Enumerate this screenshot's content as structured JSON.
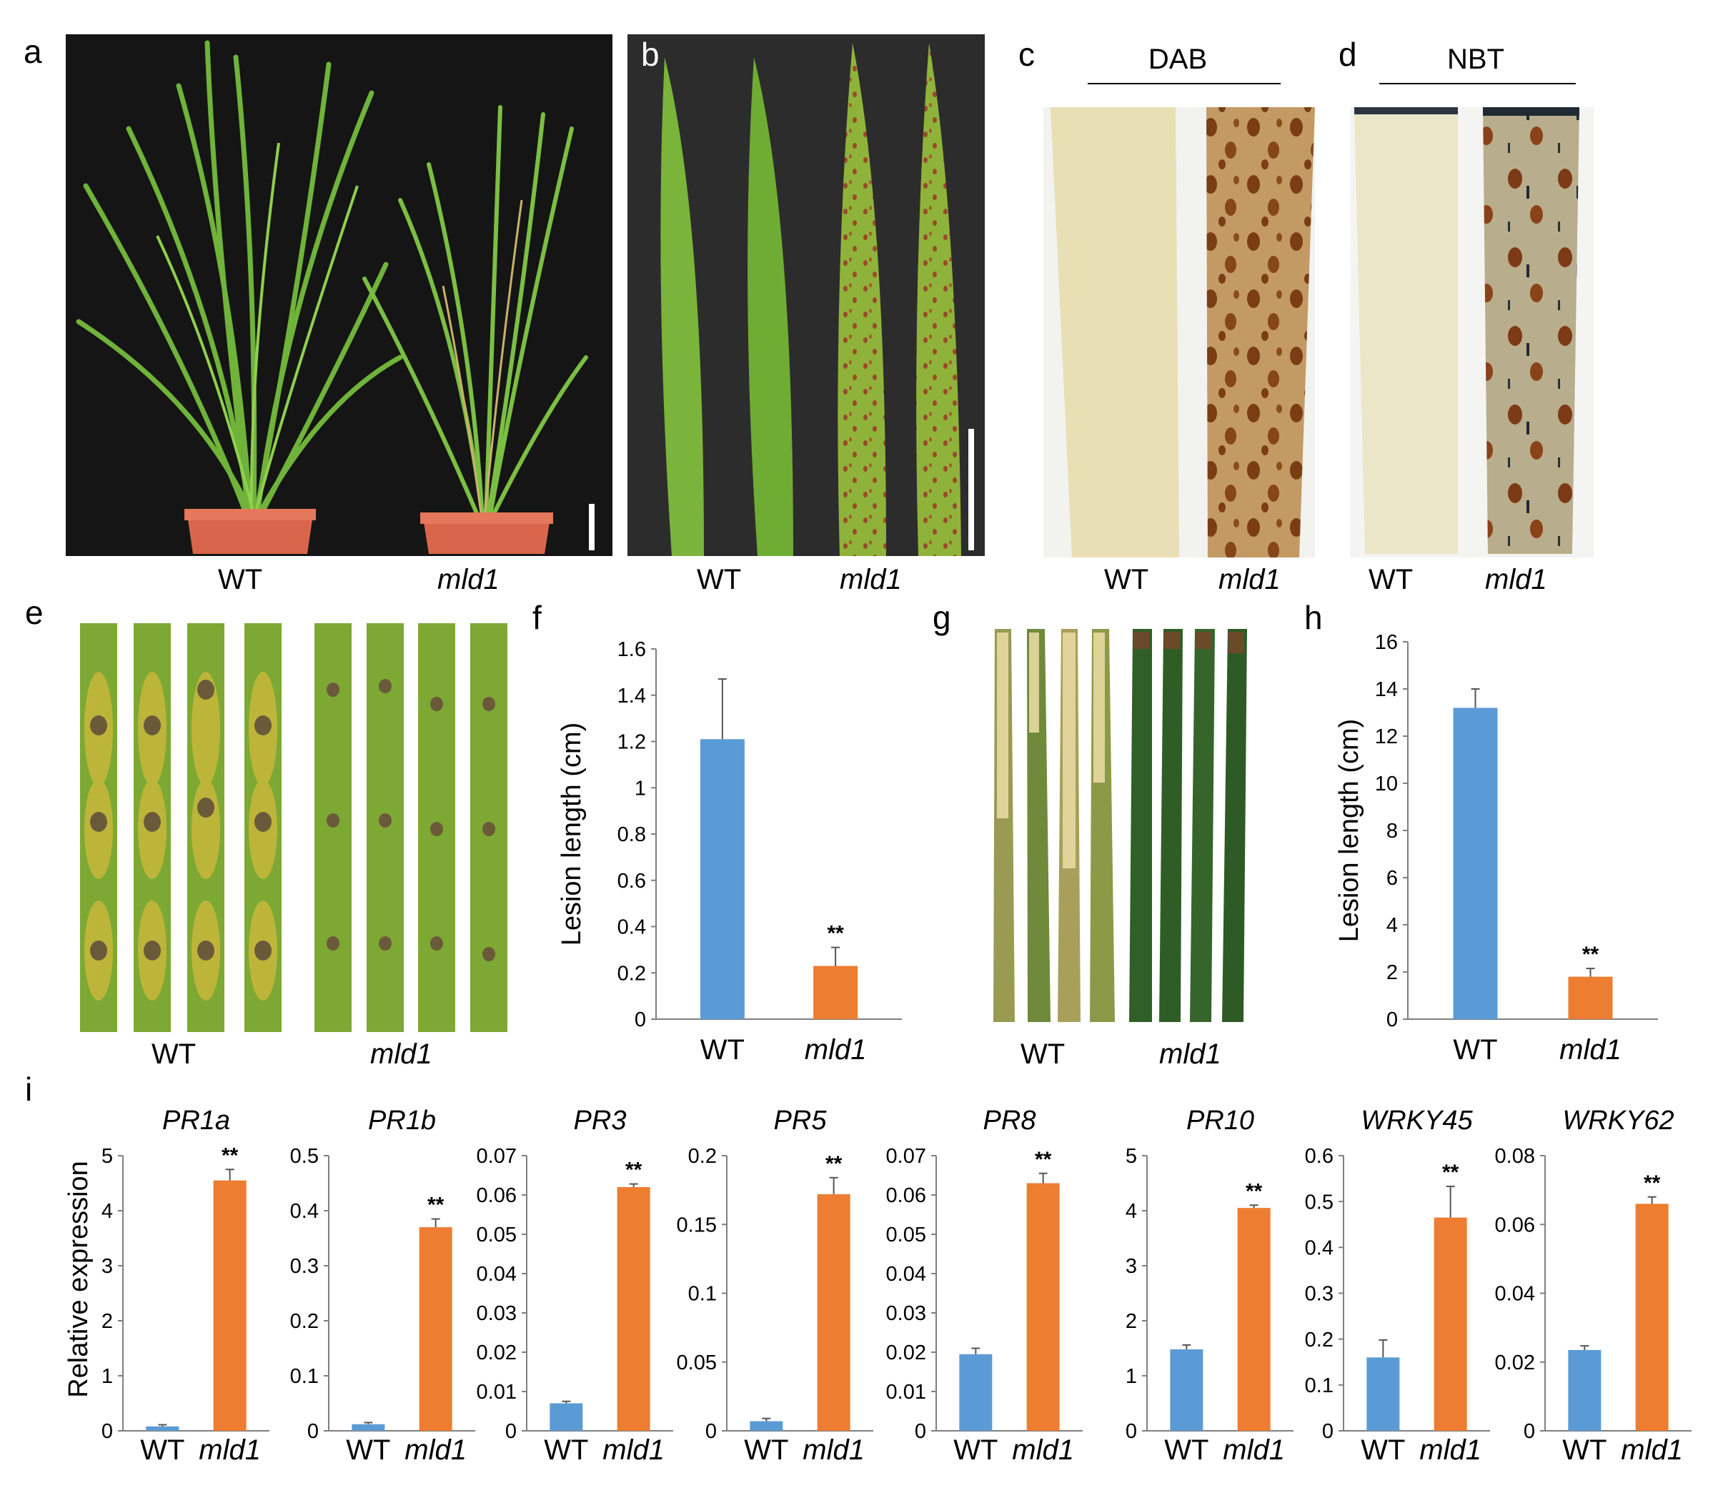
{
  "colors": {
    "wt": "#5b9bd5",
    "mld1": "#ed7d31"
  },
  "panels": {
    "a": {
      "letter": "a",
      "labels": [
        "WT",
        "mld1"
      ]
    },
    "b": {
      "letter": "b",
      "labels": [
        "WT",
        "mld1"
      ]
    },
    "c": {
      "letter": "c",
      "title": "DAB",
      "labels": [
        "WT",
        "mld1"
      ]
    },
    "d": {
      "letter": "d",
      "title": "NBT",
      "labels": [
        "WT",
        "mld1"
      ]
    },
    "e": {
      "letter": "e",
      "labels": [
        "WT",
        "mld1"
      ]
    },
    "g": {
      "letter": "g",
      "labels": [
        "WT",
        "mld1"
      ]
    },
    "i": {
      "letter": "i",
      "ylabel": "Relative expression"
    }
  },
  "chart_data": [
    {
      "id": "f",
      "letter": "f",
      "type": "bar",
      "categories": [
        "WT",
        "mld1"
      ],
      "values": [
        1.21,
        0.23
      ],
      "errors": [
        0.26,
        0.08
      ],
      "ylabel": "Lesion length (cm)",
      "ylim": [
        0,
        1.6
      ],
      "ticks": [
        "0",
        "0.2",
        "0.4",
        "0.6",
        "0.8",
        "1",
        "1.2",
        "1.4",
        "1.6"
      ],
      "significance": [
        "",
        "**"
      ]
    },
    {
      "id": "h",
      "letter": "h",
      "type": "bar",
      "categories": [
        "WT",
        "mld1"
      ],
      "values": [
        13.2,
        1.8
      ],
      "errors": [
        0.8,
        0.35
      ],
      "ylabel": "Lesion length (cm)",
      "ylim": [
        0,
        16
      ],
      "ticks": [
        "0",
        "2",
        "4",
        "6",
        "8",
        "10",
        "12",
        "14",
        "16"
      ],
      "significance": [
        "",
        "**"
      ]
    },
    {
      "id": "i1",
      "type": "bar",
      "title": "PR1a",
      "categories": [
        "WT",
        "mld1"
      ],
      "values": [
        0.08,
        4.55
      ],
      "errors": [
        0.03,
        0.2
      ],
      "ylim": [
        0,
        5
      ],
      "ticks": [
        "0",
        "1",
        "2",
        "3",
        "4",
        "5"
      ],
      "significance": [
        "",
        "**"
      ]
    },
    {
      "id": "i2",
      "type": "bar",
      "title": "PR1b",
      "categories": [
        "WT",
        "mld1"
      ],
      "values": [
        0.012,
        0.37
      ],
      "errors": [
        0.003,
        0.015
      ],
      "ylim": [
        0,
        0.5
      ],
      "ticks": [
        "0",
        "0.1",
        "0.2",
        "0.3",
        "0.4",
        "0.5"
      ],
      "significance": [
        "",
        "**"
      ]
    },
    {
      "id": "i3",
      "type": "bar",
      "title": "PR3",
      "categories": [
        "WT",
        "mld1"
      ],
      "values": [
        0.007,
        0.062
      ],
      "errors": [
        0.0005,
        0.0008
      ],
      "ylim": [
        0,
        0.07
      ],
      "ticks": [
        "0",
        "0.01",
        "0.02",
        "0.03",
        "0.04",
        "0.05",
        "0.06",
        "0.07"
      ],
      "significance": [
        "",
        "**"
      ]
    },
    {
      "id": "i4",
      "type": "bar",
      "title": "PR5",
      "categories": [
        "WT",
        "mld1"
      ],
      "values": [
        0.007,
        0.172
      ],
      "errors": [
        0.002,
        0.012
      ],
      "ylim": [
        0,
        0.2
      ],
      "ticks": [
        "0",
        "0.05",
        "0.1",
        "0.15",
        "0.2"
      ],
      "significance": [
        "",
        "**"
      ]
    },
    {
      "id": "i5",
      "type": "bar",
      "title": "PR8",
      "categories": [
        "WT",
        "mld1"
      ],
      "values": [
        0.0195,
        0.063
      ],
      "errors": [
        0.0015,
        0.0025
      ],
      "ylim": [
        0,
        0.07
      ],
      "ticks": [
        "0",
        "0.01",
        "0.02",
        "0.03",
        "0.04",
        "0.05",
        "0.06",
        "0.07"
      ],
      "significance": [
        "",
        "**"
      ]
    },
    {
      "id": "i6",
      "type": "bar",
      "title": "PR10",
      "categories": [
        "WT",
        "mld1"
      ],
      "values": [
        1.48,
        4.05
      ],
      "errors": [
        0.08,
        0.05
      ],
      "ylim": [
        0,
        5
      ],
      "ticks": [
        "0",
        "1",
        "2",
        "3",
        "4",
        "5"
      ],
      "significance": [
        "",
        "**"
      ]
    },
    {
      "id": "i7",
      "type": "bar",
      "title": "WRKY45",
      "categories": [
        "WT",
        "mld1"
      ],
      "values": [
        0.16,
        0.465
      ],
      "errors": [
        0.038,
        0.068
      ],
      "ylim": [
        0,
        0.6
      ],
      "ticks": [
        "0",
        "0.1",
        "0.2",
        "0.3",
        "0.4",
        "0.5",
        "0.6"
      ],
      "significance": [
        "",
        "**"
      ]
    },
    {
      "id": "i8",
      "type": "bar",
      "title": "WRKY62",
      "categories": [
        "WT",
        "mld1"
      ],
      "values": [
        0.0235,
        0.066
      ],
      "errors": [
        0.0012,
        0.002
      ],
      "ylim": [
        0,
        0.08
      ],
      "ticks": [
        "0",
        "0.02",
        "0.04",
        "0.06",
        "0.08"
      ],
      "significance": [
        "",
        "**"
      ]
    }
  ]
}
